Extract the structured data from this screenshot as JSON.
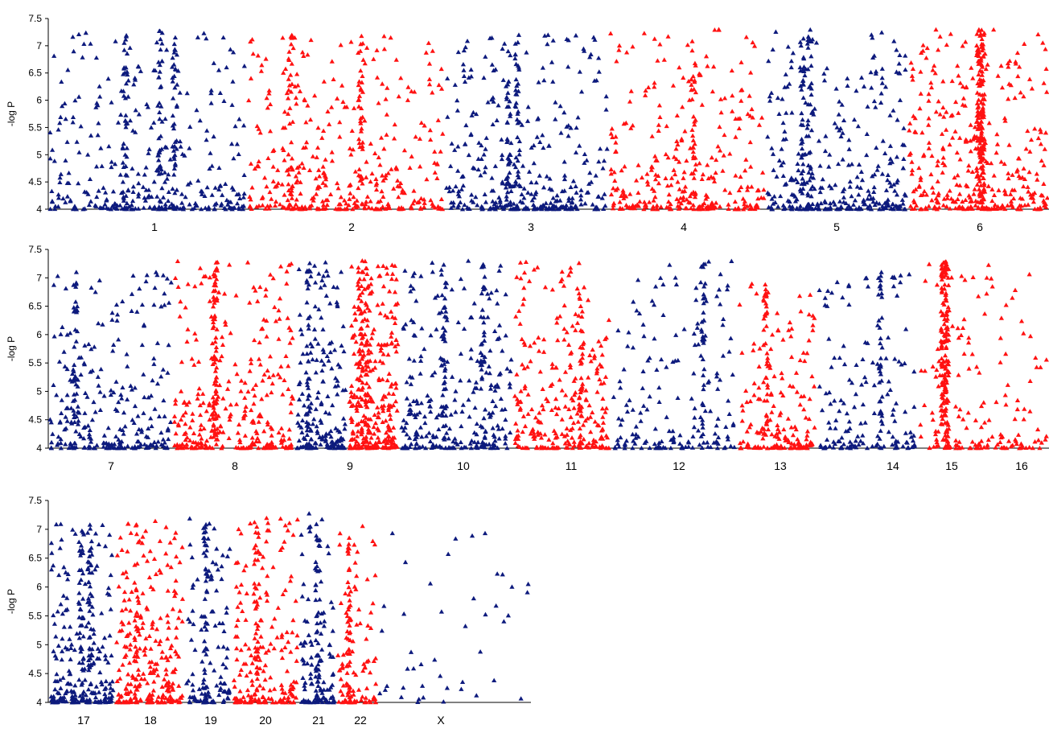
{
  "figure": {
    "background": "#ffffff",
    "series_colors": {
      "blue": "#0d1a7d",
      "red": "#ff1212"
    },
    "axis_color": "#000000"
  },
  "chart_data": [
    {
      "type": "scatter",
      "ylabel": "-log P",
      "ylim": [
        4,
        7.5
      ],
      "yticks": [
        "7.5",
        "7",
        "6.5",
        "6",
        "5.5",
        "5",
        "4.5",
        "4"
      ],
      "xlabel": "",
      "grid": false,
      "legend": "none",
      "chromosomes": [
        {
          "label": "1",
          "color": "blue",
          "peak_max": 7.3,
          "density": 330,
          "tall_columns": 3
        },
        {
          "label": "2",
          "color": "red",
          "peak_max": 7.2,
          "density": 360,
          "tall_columns": 2
        },
        {
          "label": "3",
          "color": "blue",
          "peak_max": 7.2,
          "density": 320,
          "tall_columns": 2
        },
        {
          "label": "4",
          "color": "red",
          "peak_max": 7.3,
          "density": 300,
          "tall_columns": 1
        },
        {
          "label": "5",
          "color": "blue",
          "peak_max": 7.3,
          "density": 320,
          "tall_columns": 2
        },
        {
          "label": "6",
          "color": "red",
          "peak_max": 7.3,
          "density": 340,
          "tall_columns": 1,
          "dense_peak": true
        }
      ]
    },
    {
      "type": "scatter",
      "ylabel": "-log P",
      "ylim": [
        4,
        7.5
      ],
      "yticks": [
        "7.5",
        "7",
        "6.5",
        "6",
        "5.5",
        "5",
        "4.5",
        "4"
      ],
      "xlabel": "",
      "grid": false,
      "legend": "none",
      "chromosomes": [
        {
          "label": "7",
          "color": "blue",
          "peak_max": 7.1,
          "density": 260,
          "tall_columns": 1
        },
        {
          "label": "8",
          "color": "red",
          "peak_max": 7.3,
          "density": 300,
          "tall_columns": 2
        },
        {
          "label": "9",
          "color": "blue",
          "peak_max": 7.3,
          "density": 180,
          "tall_columns": 1
        },
        {
          "label": "10",
          "color": "red",
          "peak_max": 7.3,
          "density": 290,
          "tall_columns": 2
        },
        {
          "label": "11",
          "color": "blue",
          "peak_max": 7.3,
          "density": 260,
          "tall_columns": 2
        },
        {
          "label": "12",
          "color": "red",
          "peak_max": 7.3,
          "density": 260,
          "tall_columns": 1
        },
        {
          "label": "13",
          "color": "blue",
          "peak_max": 7.3,
          "density": 170,
          "tall_columns": 1
        },
        {
          "label": "14",
          "color": "red",
          "peak_max": 6.9,
          "density": 170,
          "tall_columns": 1
        },
        {
          "label": "15",
          "color": "blue",
          "peak_max": 7.1,
          "density": 150,
          "tall_columns": 1
        },
        {
          "label": "16",
          "color": "red",
          "peak_max": 7.3,
          "density": 160,
          "tall_columns": 1,
          "dense_peak": true
        }
      ]
    },
    {
      "type": "scatter",
      "ylabel": "-log P",
      "ylim": [
        4,
        7.5
      ],
      "yticks": [
        "7.5",
        "7",
        "6.5",
        "6",
        "5.5",
        "5",
        "4.5",
        "4"
      ],
      "xlabel": "",
      "grid": false,
      "legend": "none",
      "chromosomes": [
        {
          "label": "17",
          "color": "blue",
          "peak_max": 7.1,
          "density": 220,
          "tall_columns": 2
        },
        {
          "label": "18",
          "color": "red",
          "peak_max": 7.2,
          "density": 240,
          "tall_columns": 1
        },
        {
          "label": "19",
          "color": "blue",
          "peak_max": 7.2,
          "density": 110,
          "tall_columns": 1
        },
        {
          "label": "20",
          "color": "red",
          "peak_max": 7.2,
          "density": 190,
          "tall_columns": 1
        },
        {
          "label": "21",
          "color": "blue",
          "peak_max": 7.3,
          "density": 110,
          "tall_columns": 1
        },
        {
          "label": "22",
          "color": "red",
          "peak_max": 7.1,
          "density": 100,
          "tall_columns": 1
        },
        {
          "label": "X",
          "color": "blue",
          "peak_max": 7.0,
          "density": 45,
          "tall_columns": 0,
          "sparse": true
        }
      ]
    }
  ]
}
